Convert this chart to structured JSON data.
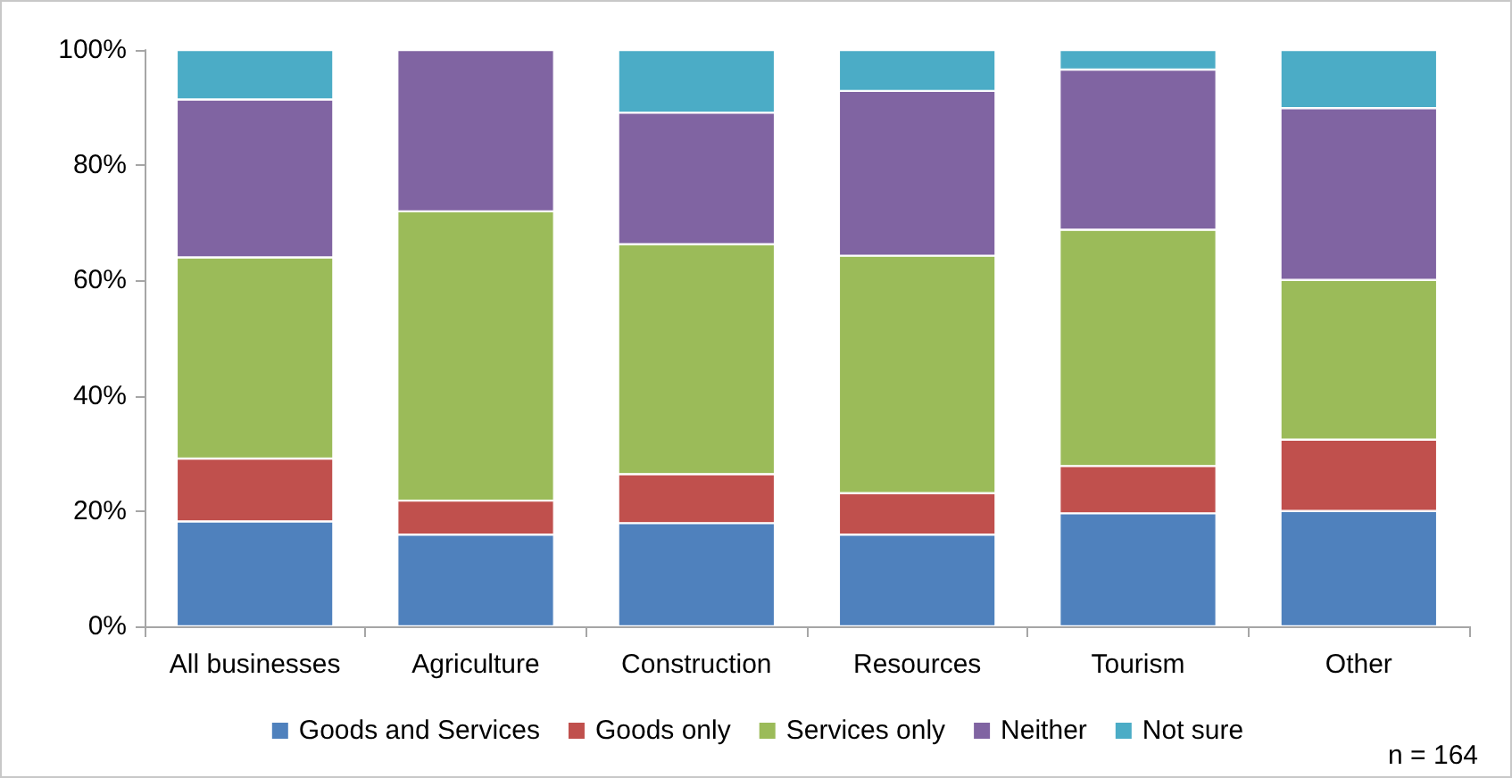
{
  "chart_data": {
    "type": "bar",
    "stacked": true,
    "categories": [
      "All businesses",
      "Agriculture",
      "Construction",
      "Resources",
      "Tourism",
      "Other"
    ],
    "series": [
      {
        "name": "Goods and Services",
        "color": "#4f81bd",
        "values": [
          18.2,
          15.9,
          17.9,
          15.9,
          19.6,
          20.0
        ]
      },
      {
        "name": "Goods only",
        "color": "#c0504d",
        "values": [
          10.9,
          5.9,
          8.5,
          7.2,
          8.2,
          12.4
        ]
      },
      {
        "name": "Services only",
        "color": "#9bbb59",
        "values": [
          34.9,
          50.2,
          39.9,
          41.2,
          41.0,
          27.7
        ]
      },
      {
        "name": "Neither",
        "color": "#8064a2",
        "values": [
          27.4,
          28.0,
          22.8,
          28.6,
          27.8,
          29.8
        ]
      },
      {
        "name": "Not sure",
        "color": "#4bacc6",
        "values": [
          8.6,
          null,
          10.9,
          7.1,
          3.4,
          10.1
        ]
      }
    ],
    "ylim": [
      0,
      100
    ],
    "yticks": [
      {
        "value": 0,
        "label": "0%"
      },
      {
        "value": 20,
        "label": "20%"
      },
      {
        "value": 40,
        "label": "40%"
      },
      {
        "value": 60,
        "label": "60%"
      },
      {
        "value": 80,
        "label": "80%"
      },
      {
        "value": 100,
        "label": "100%"
      }
    ],
    "grid": false,
    "legend": "bottom",
    "annotations": [
      "n = 164"
    ]
  }
}
